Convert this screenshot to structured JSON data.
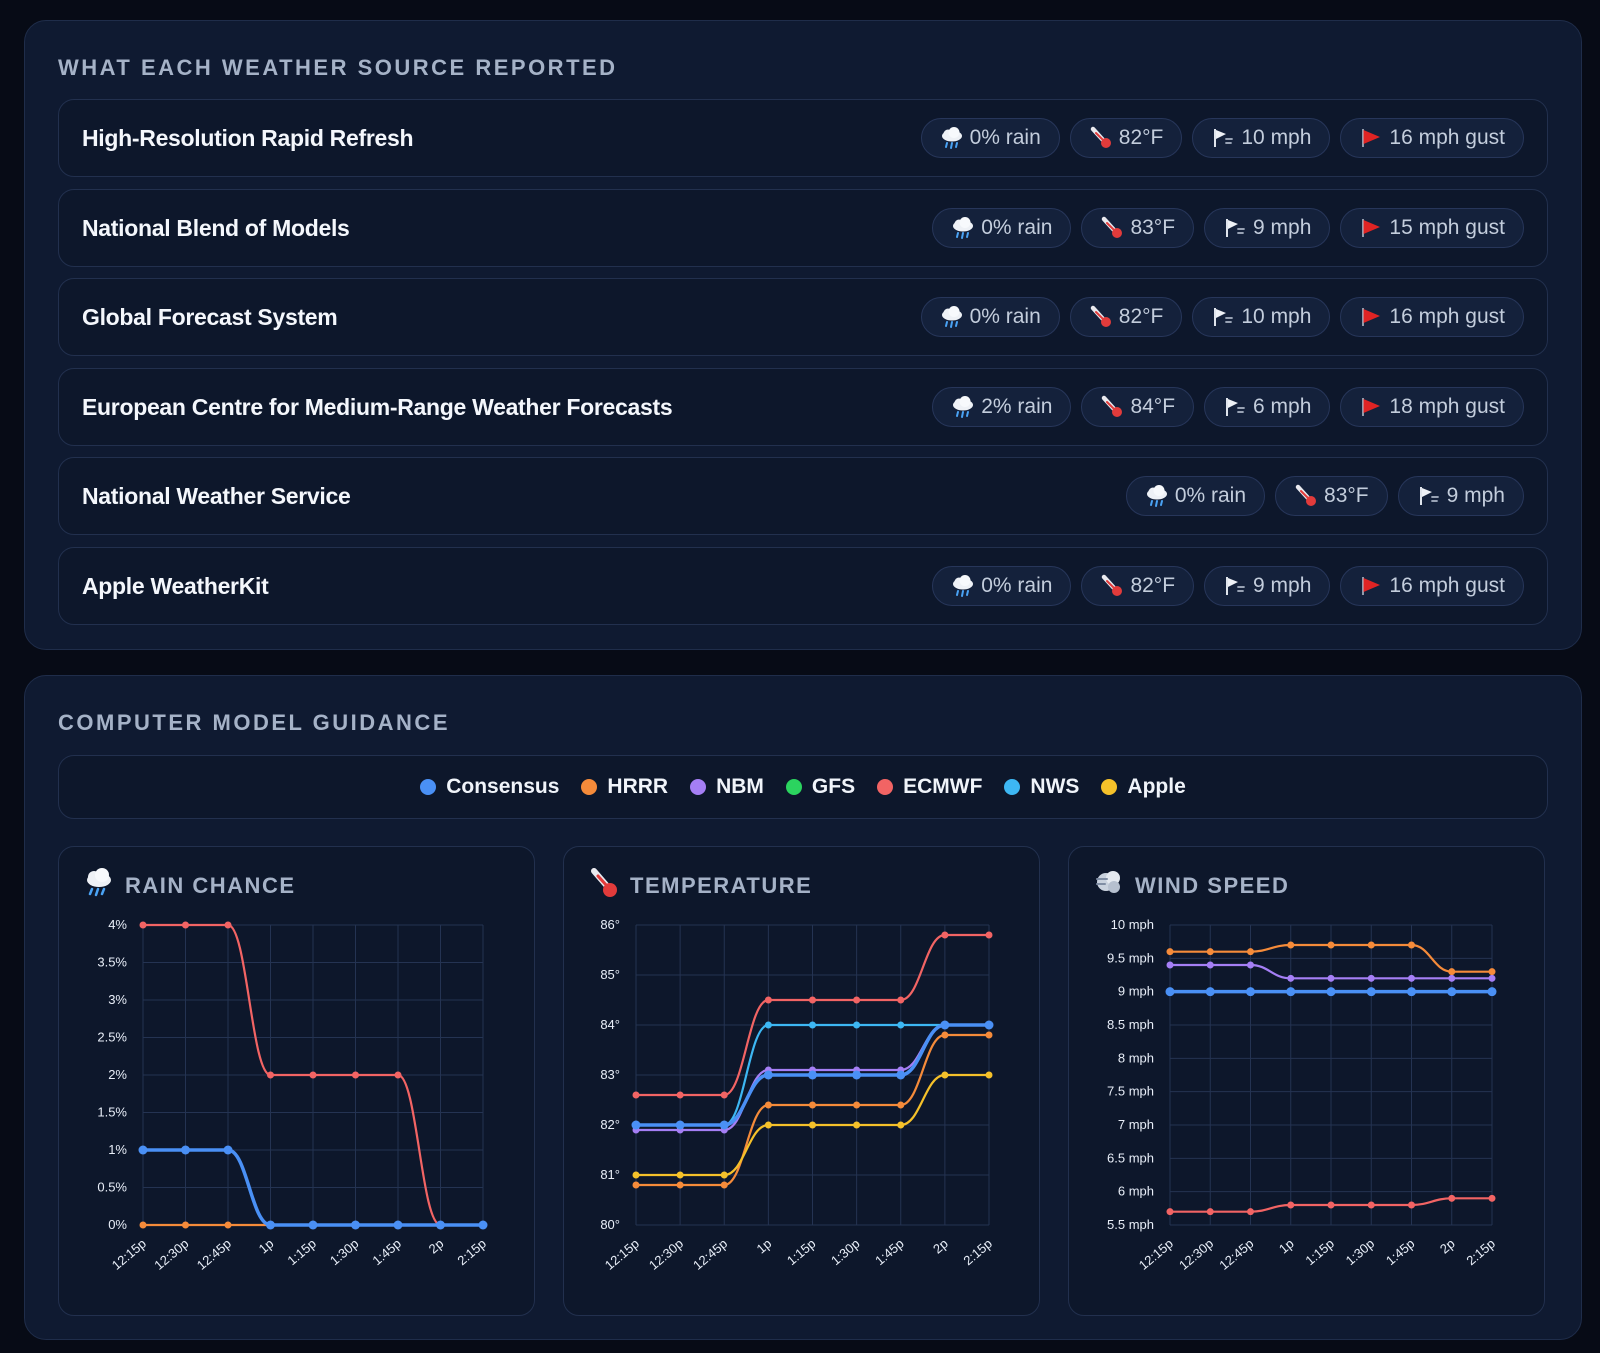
{
  "sources_panel": {
    "title": "WHAT EACH WEATHER SOURCE REPORTED",
    "rows": [
      {
        "name": "High-Resolution Rapid Refresh",
        "rain": "0% rain",
        "temp": "82°F",
        "wind": "10 mph",
        "gust": "16 mph gust"
      },
      {
        "name": "National Blend of Models",
        "rain": "0% rain",
        "temp": "83°F",
        "wind": "9 mph",
        "gust": "15 mph gust"
      },
      {
        "name": "Global Forecast System",
        "rain": "0% rain",
        "temp": "82°F",
        "wind": "10 mph",
        "gust": "16 mph gust"
      },
      {
        "name": "European Centre for Medium-Range Weather Forecasts",
        "rain": "2% rain",
        "temp": "84°F",
        "wind": "6 mph",
        "gust": "18 mph gust"
      },
      {
        "name": "National Weather Service",
        "rain": "0% rain",
        "temp": "83°F",
        "wind": "9 mph",
        "gust": null
      },
      {
        "name": "Apple WeatherKit",
        "rain": "0% rain",
        "temp": "82°F",
        "wind": "9 mph",
        "gust": "16 mph gust"
      }
    ],
    "icons": {
      "rain": "rain-cloud-icon",
      "temp": "thermometer-icon",
      "wind": "wind-icon",
      "gust": "red-flag-icon"
    }
  },
  "guidance_panel": {
    "title": "COMPUTER MODEL GUIDANCE",
    "legend": [
      {
        "label": "Consensus",
        "color": "#4a90f5"
      },
      {
        "label": "HRRR",
        "color": "#f58b3a"
      },
      {
        "label": "NBM",
        "color": "#a57ff5"
      },
      {
        "label": "GFS",
        "color": "#2bd45f"
      },
      {
        "label": "ECMWF",
        "color": "#f26464"
      },
      {
        "label": "NWS",
        "color": "#3db7f3"
      },
      {
        "label": "Apple",
        "color": "#f5c12a"
      }
    ]
  },
  "chart_data": [
    {
      "type": "line",
      "title": "RAIN CHANCE",
      "icon": "rain-cloud-icon",
      "x": [
        "12:15p",
        "12:30p",
        "12:45p",
        "1p",
        "1:15p",
        "1:30p",
        "1:45p",
        "2p",
        "2:15p"
      ],
      "ylim": [
        0,
        4
      ],
      "yticks": [
        0,
        0.5,
        1,
        1.5,
        2,
        2.5,
        3,
        3.5,
        4
      ],
      "ytick_labels": [
        "0%",
        "0.5%",
        "1%",
        "1.5%",
        "2%",
        "2.5%",
        "3%",
        "3.5%",
        "4%"
      ],
      "grid": true,
      "series": [
        {
          "name": "HRRR",
          "color": "#f58b3a",
          "values": [
            0,
            0,
            0,
            0,
            0,
            0,
            0,
            0,
            0
          ]
        },
        {
          "name": "ECMWF",
          "color": "#f26464",
          "values": [
            4,
            4,
            4,
            2,
            2,
            2,
            2,
            0,
            0
          ]
        },
        {
          "name": "Consensus",
          "color": "#4a90f5",
          "values": [
            1,
            1,
            1,
            0,
            0,
            0,
            0,
            0,
            0
          ]
        }
      ]
    },
    {
      "type": "line",
      "title": "TEMPERATURE",
      "icon": "thermometer-icon",
      "x": [
        "12:15p",
        "12:30p",
        "12:45p",
        "1p",
        "1:15p",
        "1:30p",
        "1:45p",
        "2p",
        "2:15p"
      ],
      "ylim": [
        80,
        86
      ],
      "yticks": [
        80,
        81,
        82,
        83,
        84,
        85,
        86
      ],
      "ytick_labels": [
        "80°",
        "81°",
        "82°",
        "83°",
        "84°",
        "85°",
        "86°"
      ],
      "grid": true,
      "series": [
        {
          "name": "ECMWF",
          "color": "#f26464",
          "values": [
            82.6,
            82.6,
            82.6,
            84.5,
            84.5,
            84.5,
            84.5,
            85.8,
            85.8
          ]
        },
        {
          "name": "NBM",
          "color": "#a57ff5",
          "values": [
            81.9,
            81.9,
            81.9,
            83.1,
            83.1,
            83.1,
            83.1,
            84.0,
            84.0
          ]
        },
        {
          "name": "GFS",
          "color": "#2bd45f",
          "values": [
            82.0,
            82.0,
            82.0,
            83.0,
            83.0,
            83.0,
            83.0,
            84.0,
            84.0
          ]
        },
        {
          "name": "HRRR",
          "color": "#f58b3a",
          "values": [
            80.8,
            80.8,
            80.8,
            82.4,
            82.4,
            82.4,
            82.4,
            83.8,
            83.8
          ]
        },
        {
          "name": "Apple",
          "color": "#f5c12a",
          "values": [
            81.0,
            81.0,
            81.0,
            82.0,
            82.0,
            82.0,
            82.0,
            83.0,
            83.0
          ]
        },
        {
          "name": "NWS",
          "color": "#3db7f3",
          "values": [
            82.0,
            82.0,
            82.0,
            84.0,
            84.0,
            84.0,
            84.0,
            84.0,
            84.0
          ]
        },
        {
          "name": "Consensus",
          "color": "#4a90f5",
          "values": [
            82.0,
            82.0,
            82.0,
            83.0,
            83.0,
            83.0,
            83.0,
            84.0,
            84.0
          ]
        }
      ]
    },
    {
      "type": "line",
      "title": "WIND SPEED",
      "icon": "wind-icon",
      "x": [
        "12:15p",
        "12:30p",
        "12:45p",
        "1p",
        "1:15p",
        "1:30p",
        "1:45p",
        "2p",
        "2:15p"
      ],
      "ylim": [
        5.5,
        10
      ],
      "yticks": [
        5.5,
        6,
        6.5,
        7,
        7.5,
        8,
        8.5,
        9,
        9.5,
        10
      ],
      "ytick_labels": [
        "5.5 mph",
        "6 mph",
        "6.5 mph",
        "7 mph",
        "7.5 mph",
        "8 mph",
        "8.5 mph",
        "9 mph",
        "9.5 mph",
        "10 mph"
      ],
      "grid": true,
      "series": [
        {
          "name": "HRRR",
          "color": "#f58b3a",
          "values": [
            9.6,
            9.6,
            9.6,
            9.7,
            9.7,
            9.7,
            9.7,
            9.3,
            9.3
          ]
        },
        {
          "name": "NBM",
          "color": "#a57ff5",
          "values": [
            9.4,
            9.4,
            9.4,
            9.2,
            9.2,
            9.2,
            9.2,
            9.2,
            9.2
          ]
        },
        {
          "name": "ECMWF",
          "color": "#f26464",
          "values": [
            5.7,
            5.7,
            5.7,
            5.8,
            5.8,
            5.8,
            5.8,
            5.9,
            5.9
          ]
        },
        {
          "name": "Consensus",
          "color": "#4a90f5",
          "values": [
            9,
            9,
            9,
            9,
            9,
            9,
            9,
            9,
            9
          ]
        }
      ]
    }
  ]
}
